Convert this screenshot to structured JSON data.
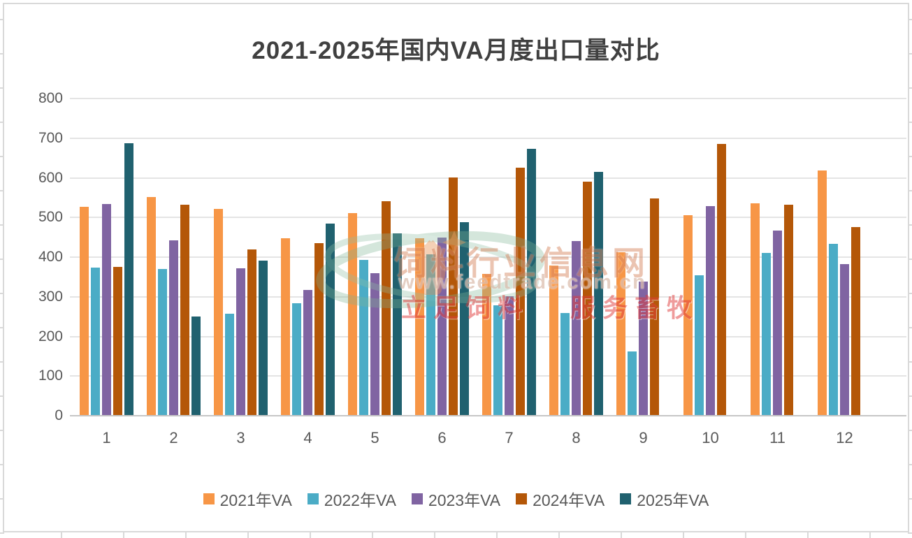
{
  "frame": {
    "border_color": "#d9d9d9"
  },
  "watermark": {
    "site_name": "饲料行业信息网",
    "url": "www.feedtrade.com.cn",
    "slogan_left": "立足饲料",
    "slogan_right": "服务畜牧"
  },
  "colors": {
    "title_text": "#404040",
    "axis_text": "#595959",
    "gridline": "#e4e4e4",
    "axis_line": "#c6c6c6"
  },
  "chart_data": {
    "type": "bar",
    "title": "2021-2025年国内VA月度出口量对比",
    "categories": [
      "1",
      "2",
      "3",
      "4",
      "5",
      "6",
      "7",
      "8",
      "9",
      "10",
      "11",
      "12"
    ],
    "series": [
      {
        "name": "2021年VA",
        "color": "#F79646",
        "values": [
          525,
          550,
          520,
          445,
          509,
          446,
          356,
          377,
          410,
          504,
          534,
          617
        ]
      },
      {
        "name": "2022年VA",
        "color": "#4BACC6",
        "values": [
          372,
          368,
          256,
          282,
          392,
          405,
          277,
          257,
          161,
          353,
          408,
          432
        ]
      },
      {
        "name": "2023年VA",
        "color": "#8064A2",
        "values": [
          532,
          440,
          370,
          316,
          358,
          448,
          300,
          439,
          337,
          527,
          466,
          381
        ]
      },
      {
        "name": "2024年VA",
        "color": "#B45708",
        "values": [
          373,
          530,
          418,
          434,
          539,
          600,
          623,
          588,
          546,
          684,
          530,
          474
        ]
      },
      {
        "name": "2025年VA",
        "color": "#20616F",
        "values": [
          686,
          249,
          390,
          483,
          459,
          487,
          671,
          614,
          null,
          null,
          null,
          null
        ]
      }
    ],
    "xlabel": "",
    "ylabel": "",
    "ylim": [
      0,
      800
    ],
    "ytick_step": 100,
    "grid": true,
    "legend_position": "bottom"
  }
}
